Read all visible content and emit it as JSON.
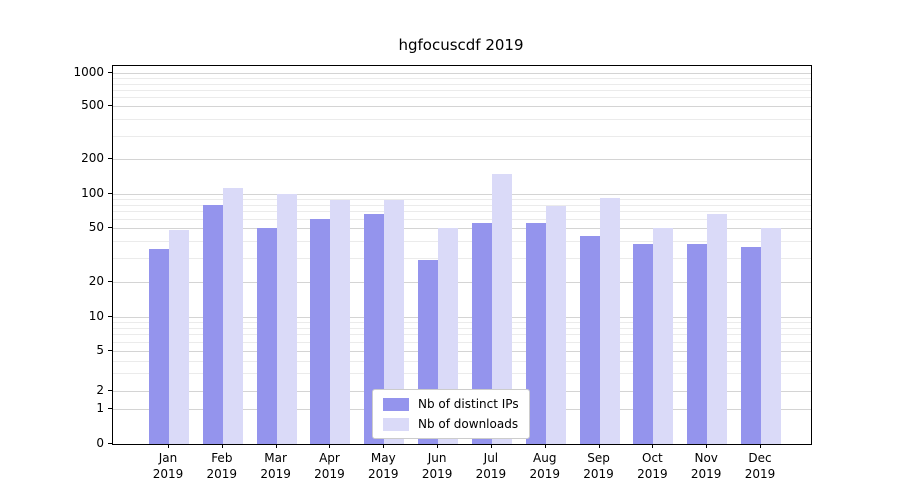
{
  "chart_data": {
    "type": "bar",
    "title": "hgfocuscdf 2019",
    "categories": [
      "Jan 2019",
      "Feb 2019",
      "Mar 2019",
      "Apr 2019",
      "May 2019",
      "Jun 2019",
      "Jul 2019",
      "Aug 2019",
      "Sep 2019",
      "Oct 2019",
      "Nov 2019",
      "Dec 2019"
    ],
    "series": [
      {
        "name": "Nb of distinct IPs",
        "color": "#9494ed",
        "values": [
          35,
          80,
          50,
          60,
          67,
          29,
          55,
          55,
          44,
          38,
          38,
          36
        ]
      },
      {
        "name": "Nb of downloads",
        "color": "#dadaf8",
        "values": [
          48,
          113,
          100,
          88,
          88,
          50,
          150,
          78,
          93,
          50,
          67,
          50
        ]
      }
    ],
    "yscale": "symlog",
    "yticks": [
      0,
      1,
      2,
      5,
      10,
      20,
      50,
      100,
      200,
      500,
      1000
    ],
    "ylim": [
      0,
      1400
    ],
    "grid": "both",
    "legend_position": "lower center"
  }
}
